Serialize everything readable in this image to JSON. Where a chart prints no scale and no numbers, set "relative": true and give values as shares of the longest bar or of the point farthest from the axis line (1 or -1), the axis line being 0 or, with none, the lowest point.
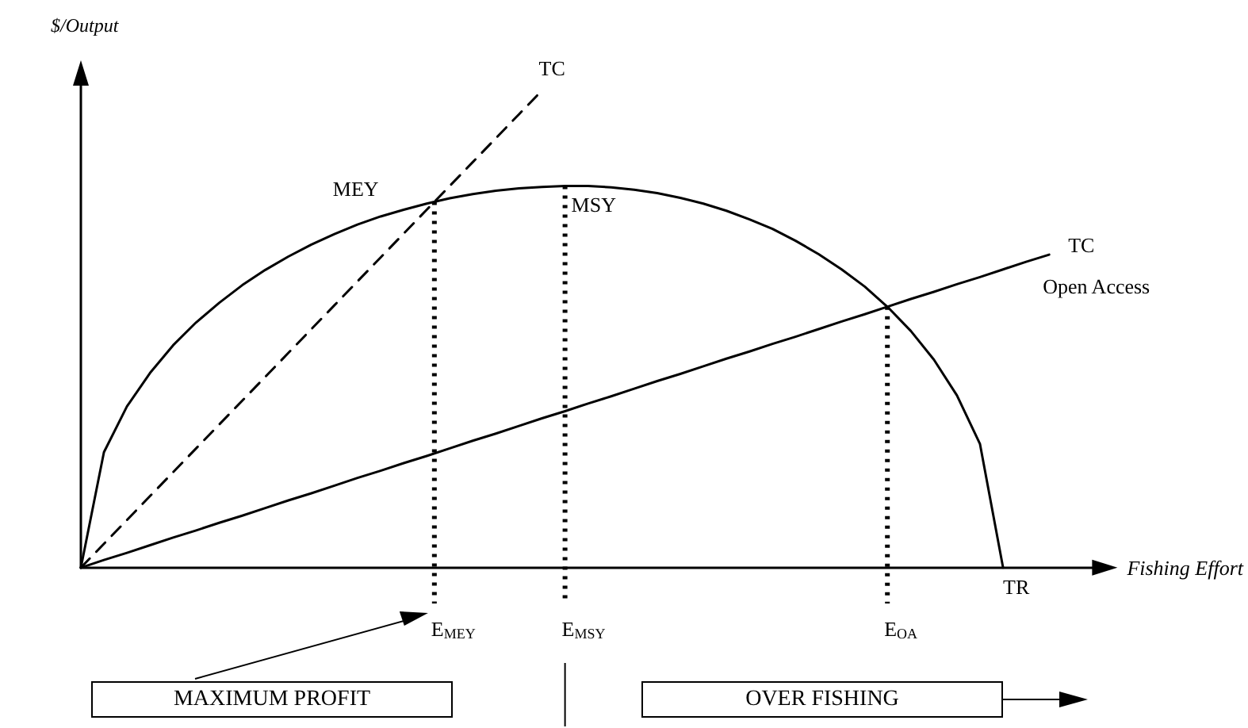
{
  "chart_data": {
    "type": "line",
    "relative": true,
    "xlabel": "Fishing Effort",
    "ylabel": "$/Output",
    "marker": "none",
    "categories": [
      null,
      null,
      null,
      null,
      null,
      null,
      null,
      null,
      null,
      null,
      null,
      null,
      null,
      null,
      null,
      null,
      null,
      null,
      null,
      null,
      null,
      null,
      null,
      null,
      null,
      null,
      null,
      null,
      null,
      null,
      null,
      null,
      null,
      null,
      null,
      null,
      null,
      null,
      null,
      null,
      null,
      null,
      null,
      null,
      null
    ],
    "series": [
      {
        "name": "TR",
        "color": "#000000",
        "line_style": "solid",
        "values": [
          0,
          0.242,
          0.338,
          0.408,
          0.466,
          0.514,
          0.555,
          0.592,
          0.624,
          0.652,
          0.677,
          0.699,
          0.719,
          0.736,
          0.75,
          0.763,
          0.774,
          0.783,
          0.79,
          0.795,
          0.798,
          0.8,
          0.8,
          0.797,
          0.792,
          0.785,
          0.775,
          0.763,
          0.748,
          0.73,
          0.71,
          0.685,
          0.657,
          0.625,
          0.589,
          0.546,
          0.496,
          0.436,
          0.361,
          0.259,
          0,
          null,
          null,
          null,
          null
        ]
      },
      {
        "name": "TC",
        "color": "#000000",
        "line_style": "dashed",
        "values": [
          0,
          0.05,
          0.1,
          0.15,
          0.2,
          0.25,
          0.3,
          0.35,
          0.4,
          0.45,
          0.5,
          0.55,
          0.6,
          0.65,
          0.7,
          0.75,
          0.8,
          0.85,
          0.9,
          0.95,
          1.0,
          null,
          null,
          null,
          null,
          null,
          null,
          null,
          null,
          null,
          null,
          null,
          null,
          null,
          null,
          null,
          null,
          null,
          null,
          null,
          null,
          null,
          null,
          null,
          null
        ]
      },
      {
        "name": "TC",
        "color": "#000000",
        "line_style": "solid",
        "values": [
          0,
          0.016,
          0.031,
          0.047,
          0.063,
          0.078,
          0.094,
          0.109,
          0.125,
          0.141,
          0.156,
          0.172,
          0.188,
          0.203,
          0.219,
          0.234,
          0.25,
          0.266,
          0.281,
          0.297,
          0.313,
          0.328,
          0.344,
          0.359,
          0.375,
          0.391,
          0.406,
          0.422,
          0.438,
          0.453,
          0.469,
          0.484,
          0.5,
          0.516,
          0.531,
          0.547,
          0.563,
          0.578,
          0.594,
          0.609,
          0.625,
          0.641,
          0.656,
          null,
          null
        ]
      }
    ],
    "annotations": [
      "MEY",
      {
        "text": "MSY",
        "y": 0.8
      },
      "Open Access",
      "E$_{MEY}$",
      "E$_{MSY}$",
      "E$_{OA}$",
      "MAXIMUM PROFIT",
      "OVER FISHING"
    ]
  }
}
